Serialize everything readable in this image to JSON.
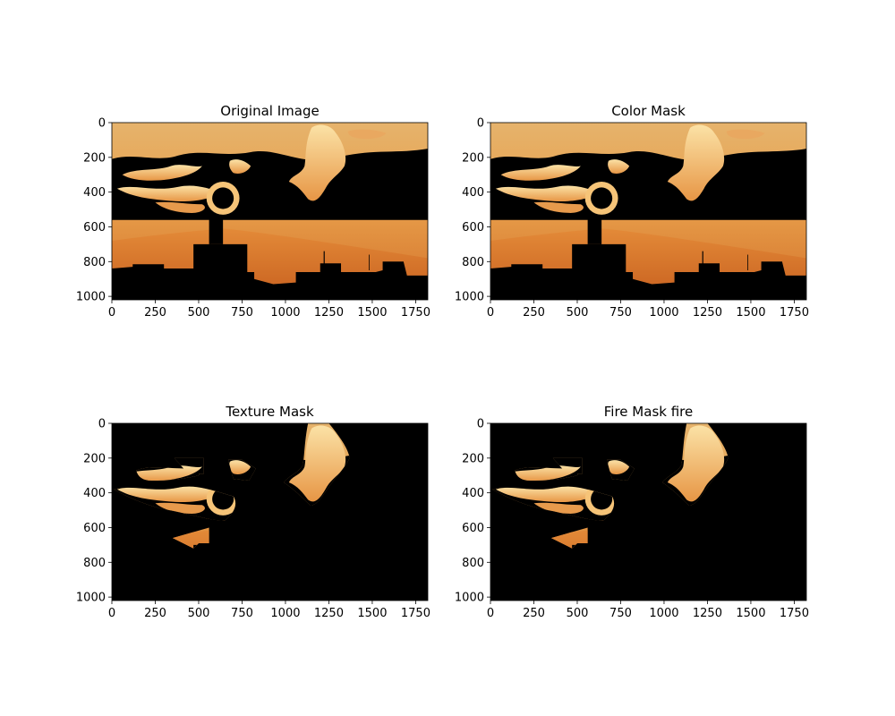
{
  "chart_data": [
    {
      "type": "image",
      "title": "Original Image",
      "xticks": [
        0,
        250,
        500,
        750,
        1000,
        1250,
        1500,
        1750
      ],
      "yticks": [
        0,
        200,
        400,
        600,
        800,
        1000
      ],
      "xlim": [
        0,
        1820
      ],
      "ylim": [
        1020,
        0
      ],
      "mask": "none"
    },
    {
      "type": "image",
      "title": "Color Mask",
      "xticks": [
        0,
        250,
        500,
        750,
        1000,
        1250,
        1500,
        1750
      ],
      "yticks": [
        0,
        200,
        400,
        600,
        800,
        1000
      ],
      "xlim": [
        0,
        1820
      ],
      "ylim": [
        1020,
        0
      ],
      "mask": "color"
    },
    {
      "type": "image",
      "title": "Texture Mask",
      "xticks": [
        0,
        250,
        500,
        750,
        1000,
        1250,
        1500,
        1750
      ],
      "yticks": [
        0,
        200,
        400,
        600,
        800,
        1000
      ],
      "xlim": [
        0,
        1820
      ],
      "ylim": [
        1020,
        0
      ],
      "mask": "texture"
    },
    {
      "type": "image",
      "title": "Fire Mask fire",
      "xticks": [
        0,
        250,
        500,
        750,
        1000,
        1250,
        1500,
        1750
      ],
      "yticks": [
        0,
        200,
        400,
        600,
        800,
        1000
      ],
      "xlim": [
        0,
        1820
      ],
      "ylim": [
        1020,
        0
      ],
      "mask": "texture"
    }
  ],
  "colors": {
    "sky_top": "#e8b46a",
    "sky_mid": "#e89a45",
    "sky_low": "#d8782a",
    "cloud": "#f5d08a",
    "cloud_light": "#fbe6b0",
    "silhouette": "#000000",
    "axis": "#000000"
  }
}
